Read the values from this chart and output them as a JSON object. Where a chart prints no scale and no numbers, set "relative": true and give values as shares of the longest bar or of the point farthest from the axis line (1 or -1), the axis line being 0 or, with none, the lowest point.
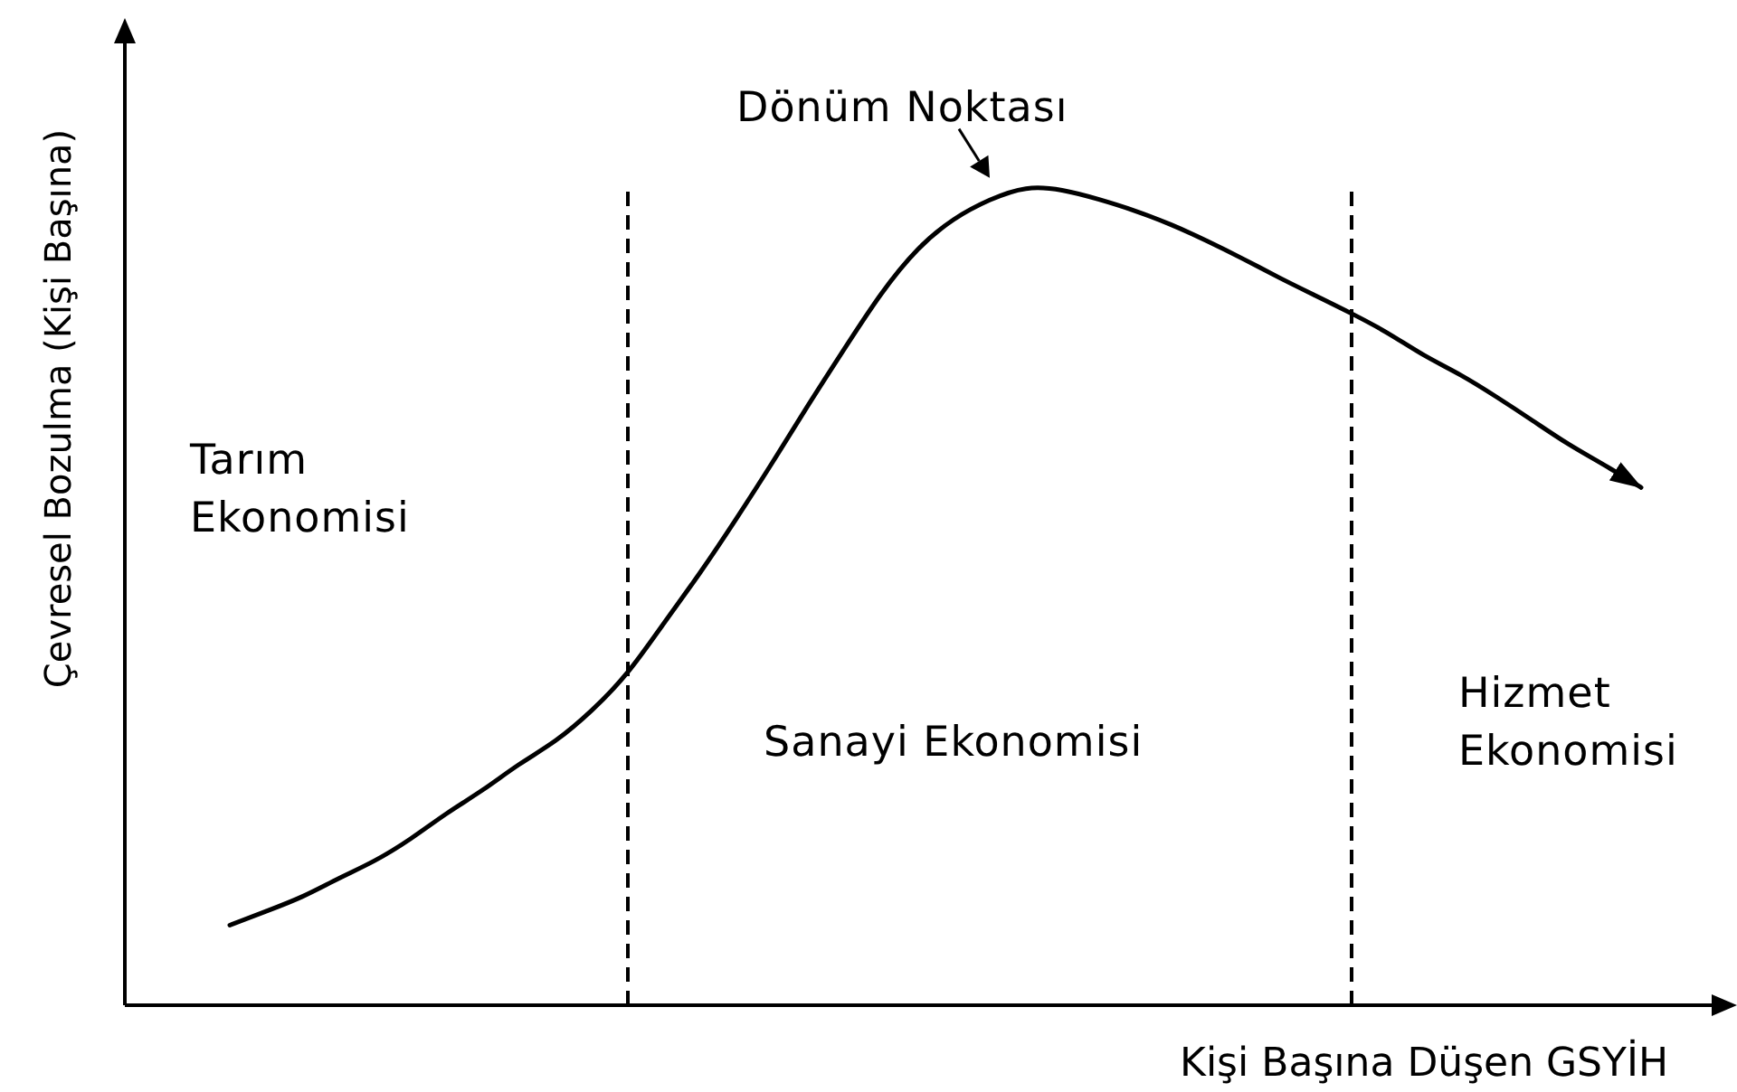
{
  "chart_data": {
    "type": "line",
    "relative": true,
    "xlabel": "Kişi Başına Düşen GSYİH",
    "ylabel": "Çevresel Bozulma (Kişi Başına)",
    "categories": [
      null,
      null,
      null,
      null,
      null,
      null,
      null,
      null,
      null,
      null,
      null,
      null,
      null,
      null,
      null,
      null,
      null,
      null,
      null,
      null,
      null,
      null,
      null,
      null,
      null,
      null,
      null,
      null,
      null,
      null,
      null,
      null,
      null,
      null,
      null,
      null,
      null,
      null,
      null,
      null
    ],
    "values": [
      0.098,
      0.115,
      0.133,
      0.155,
      0.177,
      0.204,
      0.235,
      0.264,
      0.295,
      0.324,
      0.361,
      0.408,
      0.468,
      0.53,
      0.596,
      0.665,
      0.736,
      0.805,
      0.871,
      0.925,
      0.962,
      0.986,
      1.0,
      0.998,
      0.987,
      0.973,
      0.956,
      0.936,
      0.914,
      0.891,
      0.869,
      0.847,
      0.823,
      0.796,
      0.772,
      0.745,
      0.716,
      0.687,
      0.661,
      0.634
    ],
    "color": "#000000",
    "annotations": [
      "Dönüm Noktası",
      "Tarım Ekonomisi",
      "Sanayi Ekonomisi",
      "Hizmet Ekonomisi"
    ]
  }
}
